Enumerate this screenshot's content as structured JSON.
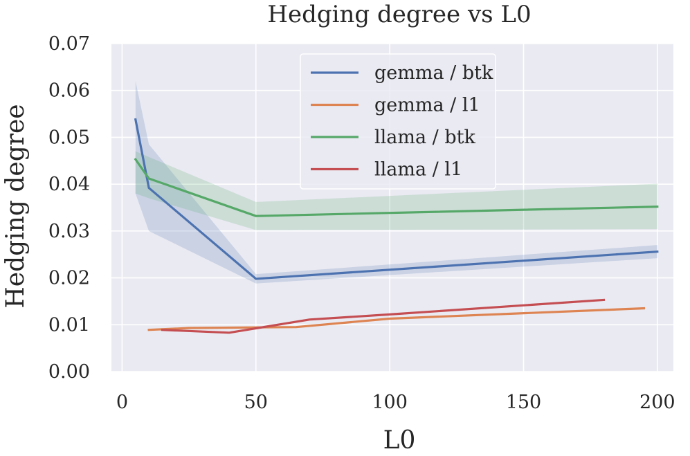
{
  "chart_data": {
    "type": "line",
    "title": "Hedging degree vs L0",
    "xlabel": "L0",
    "ylabel": "Hedging degree",
    "xlim": [
      -4,
      206
    ],
    "ylim": [
      0,
      0.07
    ],
    "xticks": [
      0,
      50,
      100,
      150,
      200
    ],
    "yticks": [
      0.0,
      0.01,
      0.02,
      0.03,
      0.04,
      0.05,
      0.06,
      0.07
    ],
    "xtick_labels": [
      "0",
      "50",
      "100",
      "150",
      "200"
    ],
    "ytick_labels": [
      "0.00",
      "0.01",
      "0.02",
      "0.03",
      "0.04",
      "0.05",
      "0.06",
      "0.07"
    ],
    "grid": true,
    "legend_position": "upper-center",
    "series": [
      {
        "name": "gemma / btk",
        "color": "#4c72b0",
        "x": [
          5,
          10,
          50,
          200
        ],
        "y": [
          0.0538,
          0.0392,
          0.0198,
          0.0256
        ],
        "band_lower": [
          0.038,
          0.03,
          0.0188,
          0.0242
        ],
        "band_upper": [
          0.062,
          0.0485,
          0.0208,
          0.027
        ]
      },
      {
        "name": "gemma / l1",
        "color": "#dd8452",
        "x": [
          10,
          25,
          65,
          100,
          195
        ],
        "y": [
          0.0089,
          0.0093,
          0.0095,
          0.0113,
          0.0135
        ]
      },
      {
        "name": "llama / btk",
        "color": "#55a868",
        "x": [
          5,
          10,
          50,
          200
        ],
        "y": [
          0.0453,
          0.0412,
          0.0332,
          0.0352
        ],
        "band_lower": [
          0.038,
          0.037,
          0.0302,
          0.0304
        ],
        "band_upper": [
          0.047,
          0.0458,
          0.0362,
          0.0401
        ]
      },
      {
        "name": "llama / l1",
        "color": "#c44e52",
        "x": [
          15,
          40,
          70,
          100,
          180
        ],
        "y": [
          0.0089,
          0.0083,
          0.0111,
          0.0122,
          0.0153
        ]
      }
    ]
  },
  "style": {
    "plot_bg": "#eaeaf2",
    "grid_color": "#ffffff",
    "text_color": "#262626"
  }
}
